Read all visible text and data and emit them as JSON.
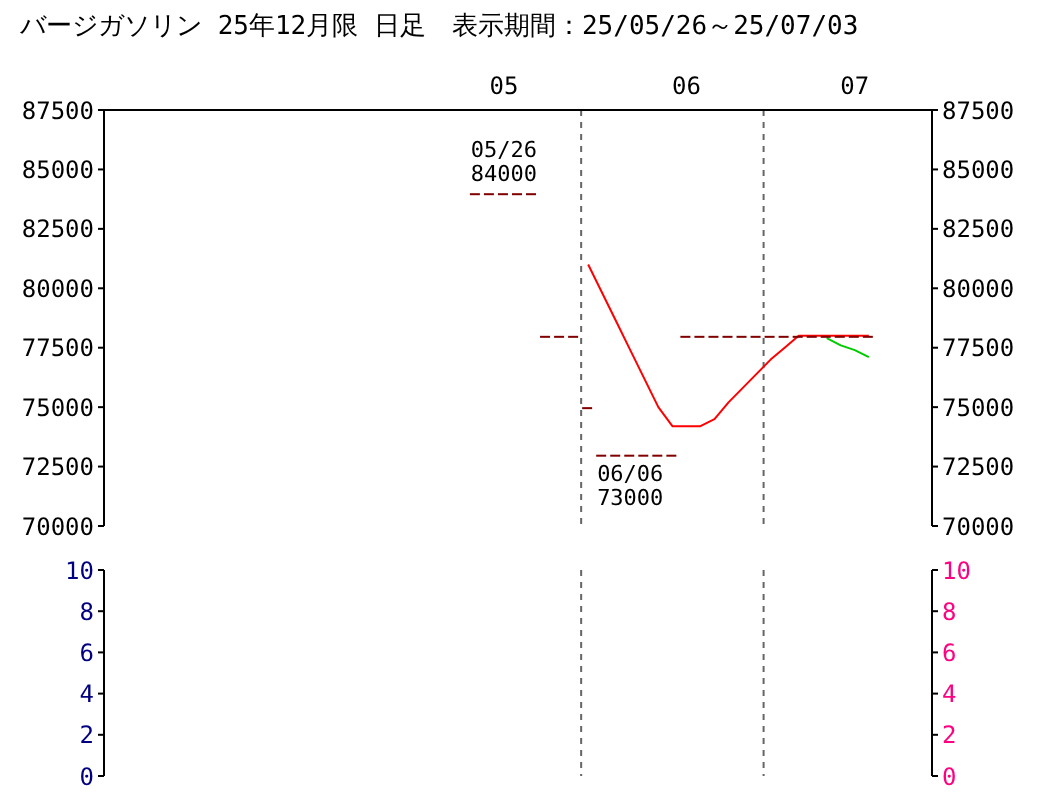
{
  "chart_data": [
    {
      "type": "candlestick",
      "title": "バージガソリン 25年12月限 日足　表示期間：25/05/26～25/07/03",
      "categories": [
        null,
        null,
        null,
        null,
        null,
        null,
        null,
        null,
        null,
        null,
        null,
        null,
        null,
        null,
        null,
        null,
        null,
        null,
        null,
        null,
        null,
        null,
        null,
        null,
        null,
        null,
        null,
        null,
        "05",
        null,
        null,
        null,
        null,
        null,
        null,
        null,
        null,
        null,
        null,
        null,
        null,
        "06",
        null,
        null,
        null,
        null,
        null,
        null,
        null,
        null,
        null,
        null,
        null,
        "07",
        null,
        null,
        null,
        null,
        null
      ],
      "ohlc": [
        null,
        null,
        null,
        null,
        null,
        null,
        null,
        null,
        null,
        null,
        null,
        null,
        null,
        null,
        null,
        null,
        null,
        null,
        null,
        null,
        null,
        null,
        null,
        null,
        null,
        null,
        [
          84000,
          84000,
          84000,
          84000
        ],
        [
          84000,
          84000,
          84000,
          84000
        ],
        [
          84000,
          84000,
          84000,
          84000
        ],
        [
          84000,
          84000,
          84000,
          84000
        ],
        [
          84000,
          84000,
          84000,
          84000
        ],
        [
          78000,
          78000,
          78000,
          78000
        ],
        [
          78000,
          78000,
          78000,
          78000
        ],
        [
          78000,
          78000,
          78000,
          78000
        ],
        [
          75000,
          75000,
          75000,
          75000
        ],
        [
          73000,
          73000,
          73000,
          73000
        ],
        [
          73000,
          73000,
          73000,
          73000
        ],
        [
          73000,
          73000,
          73000,
          73000
        ],
        [
          73000,
          73000,
          73000,
          73000
        ],
        [
          73000,
          73000,
          73000,
          73000
        ],
        [
          73000,
          73000,
          73000,
          73000
        ],
        [
          78000,
          78000,
          78000,
          78000
        ],
        [
          78000,
          78000,
          78000,
          78000
        ],
        [
          78000,
          78000,
          78000,
          78000
        ],
        [
          78000,
          78000,
          78000,
          78000
        ],
        [
          78000,
          78000,
          78000,
          78000
        ],
        [
          78000,
          78000,
          78000,
          78000
        ],
        [
          78000,
          78000,
          78000,
          78000
        ],
        [
          78000,
          78000,
          78000,
          78000
        ],
        [
          78000,
          78000,
          78000,
          78000
        ],
        [
          78000,
          78000,
          78000,
          78000
        ],
        [
          78000,
          78000,
          78000,
          78000
        ],
        [
          78000,
          78000,
          78000,
          78000
        ],
        [
          78000,
          78000,
          78000,
          78000
        ],
        [
          78000,
          78000,
          78000,
          78000
        ],
        null,
        null,
        null,
        null
      ],
      "color": "#800000",
      "series": [
        {
          "type": "line",
          "color": "#ff0000",
          "values": [
            null,
            null,
            null,
            null,
            null,
            null,
            null,
            null,
            null,
            null,
            null,
            null,
            null,
            null,
            null,
            null,
            null,
            null,
            null,
            null,
            null,
            null,
            null,
            null,
            null,
            null,
            null,
            null,
            null,
            null,
            null,
            null,
            null,
            null,
            81000,
            79800,
            78600,
            77400,
            76200,
            75000,
            74200,
            74200,
            74200,
            74500,
            75200,
            75800,
            76400,
            77000,
            77500,
            78000,
            78000,
            78000,
            78000,
            78000,
            78000,
            null,
            null,
            null,
            null
          ]
        },
        {
          "type": "line",
          "color": "#00cc00",
          "values": [
            null,
            null,
            null,
            null,
            null,
            null,
            null,
            null,
            null,
            null,
            null,
            null,
            null,
            null,
            null,
            null,
            null,
            null,
            null,
            null,
            null,
            null,
            null,
            null,
            null,
            null,
            null,
            null,
            null,
            null,
            null,
            null,
            null,
            null,
            null,
            null,
            null,
            null,
            null,
            null,
            null,
            null,
            null,
            null,
            null,
            null,
            null,
            null,
            null,
            null,
            null,
            77900,
            77600,
            77400,
            77100,
            null,
            null,
            null,
            null
          ]
        }
      ],
      "annotations": [
        "05/26 84000",
        "06/06 73000"
      ],
      "ylim": [
        70000,
        87500
      ],
      "yticks": [
        70000,
        72500,
        75000,
        77500,
        80000,
        82500,
        85000,
        87500
      ],
      "y2lim": [
        70000,
        87500
      ],
      "y2ticks": [
        70000,
        72500,
        75000,
        77500,
        80000,
        82500,
        85000,
        87500
      ],
      "grid": true,
      "legend": false
    },
    {
      "type": "bar",
      "categories": [
        null,
        null,
        null,
        null,
        null,
        null,
        null,
        null,
        null,
        null,
        null,
        null,
        null,
        null,
        null,
        null,
        null,
        null,
        null,
        null,
        null,
        null,
        null,
        null,
        null,
        null,
        null,
        null,
        null,
        null,
        null,
        null,
        null,
        null,
        null,
        null,
        null,
        null,
        null,
        null,
        null,
        null,
        null,
        null,
        null,
        null,
        null,
        null,
        null,
        null,
        null,
        null,
        null,
        null,
        null,
        null,
        null,
        null,
        null
      ],
      "values": [
        null,
        null,
        null,
        null,
        null,
        null,
        null,
        null,
        null,
        null,
        null,
        null,
        null,
        null,
        null,
        null,
        null,
        null,
        null,
        null,
        null,
        null,
        null,
        null,
        null,
        null,
        null,
        null,
        null,
        null,
        null,
        null,
        null,
        null,
        null,
        null,
        null,
        null,
        null,
        null,
        null,
        null,
        null,
        null,
        null,
        null,
        null,
        null,
        null,
        null,
        null,
        null,
        null,
        null,
        null,
        null,
        null,
        null,
        null
      ],
      "ylim": [
        0,
        10
      ],
      "yticks": [
        0,
        2,
        4,
        6,
        8,
        10
      ],
      "y2lim": [
        0,
        10
      ],
      "y2ticks": [
        0,
        2,
        4,
        6,
        8,
        10
      ],
      "grid": true,
      "legend": false
    }
  ]
}
